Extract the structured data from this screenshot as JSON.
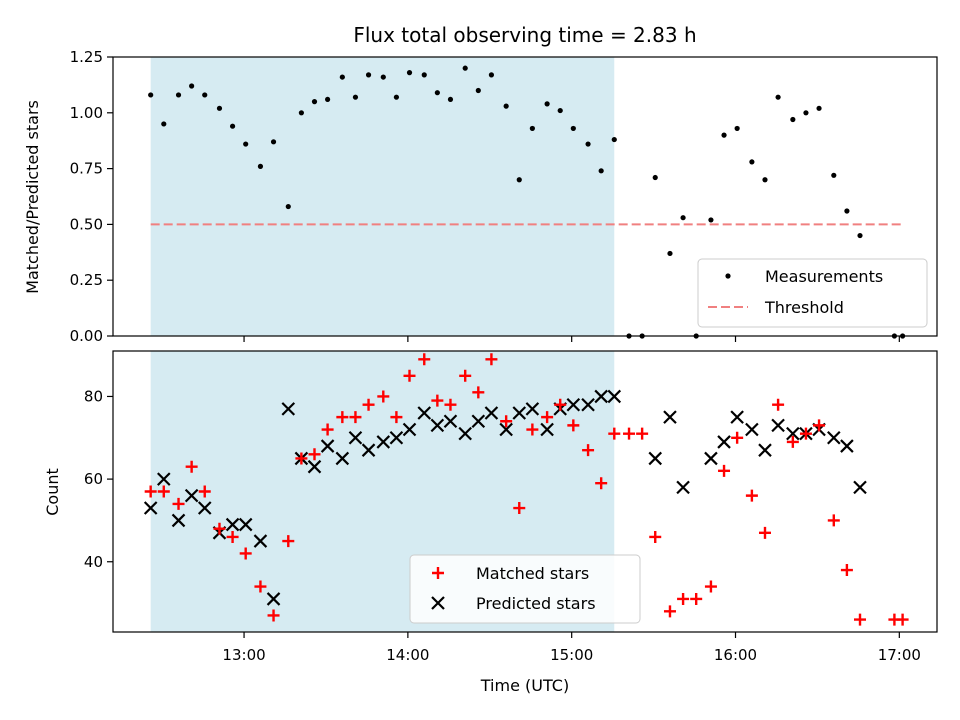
{
  "chart_data": {
    "title": "Flux total observing time = 2.83 h",
    "xlabel": "Time (UTC)",
    "x_ticks": [
      "13:00",
      "14:00",
      "15:00",
      "16:00",
      "17:00"
    ],
    "x_tick_hours": [
      13,
      14,
      15,
      16,
      17
    ],
    "xlim": [
      12.2,
      17.23
    ],
    "shaded_region": {
      "start": 12.43,
      "end": 15.26,
      "color": "#add8e6"
    },
    "panels": [
      {
        "type": "scatter",
        "ylabel": "Matched/Predicted stars",
        "ylim": [
          0,
          1.25
        ],
        "y_ticks": [
          0.0,
          0.25,
          0.5,
          0.75,
          1.0,
          1.25
        ],
        "y_tick_labels": [
          "0.00",
          "0.25",
          "0.50",
          "0.75",
          "1.00",
          "1.25"
        ],
        "threshold": {
          "value": 0.5,
          "x_start": 12.43,
          "x_end": 17.02,
          "color": "#f08080"
        },
        "legend": [
          "Measurements",
          "Threshold"
        ],
        "series": [
          {
            "name": "Measurements",
            "color": "#000000",
            "x": [
              12.43,
              12.51,
              12.6,
              12.68,
              12.76,
              12.85,
              12.93,
              13.01,
              13.1,
              13.18,
              13.27,
              13.35,
              13.43,
              13.51,
              13.6,
              13.68,
              13.76,
              13.85,
              13.93,
              14.01,
              14.1,
              14.18,
              14.26,
              14.35,
              14.43,
              14.51,
              14.6,
              14.68,
              14.76,
              14.85,
              14.93,
              15.01,
              15.1,
              15.18,
              15.26,
              15.35,
              15.43,
              15.51,
              15.6,
              15.68,
              15.76,
              15.85,
              15.93,
              16.01,
              16.1,
              16.18,
              16.26,
              16.35,
              16.43,
              16.51,
              16.6,
              16.68,
              16.76,
              16.97,
              17.02
            ],
            "y": [
              1.08,
              0.95,
              1.08,
              1.12,
              1.08,
              1.02,
              0.94,
              0.86,
              0.76,
              0.87,
              0.58,
              1.0,
              1.05,
              1.06,
              1.16,
              1.07,
              1.17,
              1.16,
              1.07,
              1.18,
              1.17,
              1.09,
              1.06,
              1.2,
              1.1,
              1.17,
              1.03,
              0.7,
              0.93,
              1.04,
              1.01,
              0.93,
              0.86,
              0.74,
              0.88,
              0.0,
              0.0,
              0.71,
              0.37,
              0.53,
              0.0,
              0.52,
              0.9,
              0.93,
              0.78,
              0.7,
              1.07,
              0.97,
              1.0,
              1.02,
              0.72,
              0.56,
              0.45,
              0.0,
              0.0
            ]
          }
        ]
      },
      {
        "type": "scatter",
        "ylabel": "Count",
        "ylim": [
          23,
          91
        ],
        "y_ticks": [
          40,
          60,
          80
        ],
        "y_tick_labels": [
          "40",
          "60",
          "80"
        ],
        "legend": [
          "Matched stars",
          "Predicted stars"
        ],
        "series": [
          {
            "name": "Matched stars",
            "color": "#ff0000",
            "marker": "plus",
            "x": [
              12.43,
              12.51,
              12.6,
              12.68,
              12.76,
              12.85,
              12.93,
              13.01,
              13.1,
              13.18,
              13.27,
              13.35,
              13.43,
              13.51,
              13.6,
              13.68,
              13.76,
              13.85,
              13.93,
              14.01,
              14.1,
              14.18,
              14.26,
              14.35,
              14.43,
              14.51,
              14.6,
              14.68,
              14.76,
              14.85,
              14.93,
              15.01,
              15.1,
              15.18,
              15.26,
              15.35,
              15.43,
              15.51,
              15.6,
              15.68,
              15.76,
              15.85,
              15.93,
              16.01,
              16.1,
              16.18,
              16.26,
              16.35,
              16.43,
              16.51,
              16.6,
              16.68,
              16.76,
              16.97,
              17.02
            ],
            "y": [
              57,
              57,
              54,
              63,
              57,
              48,
              46,
              42,
              34,
              27,
              45,
              65,
              66,
              72,
              75,
              75,
              78,
              80,
              75,
              85,
              89,
              79,
              78,
              85,
              81,
              89,
              74,
              53,
              72,
              75,
              78,
              73,
              67,
              59,
              71,
              71,
              71,
              46,
              28,
              31,
              31,
              34,
              62,
              70,
              56,
              47,
              78,
              69,
              71,
              73,
              50,
              38,
              26,
              26,
              26
            ]
          },
          {
            "name": "Predicted stars",
            "color": "#000000",
            "marker": "x",
            "x": [
              12.43,
              12.51,
              12.6,
              12.68,
              12.76,
              12.85,
              12.93,
              13.01,
              13.1,
              13.18,
              13.27,
              13.35,
              13.43,
              13.51,
              13.6,
              13.68,
              13.76,
              13.85,
              13.93,
              14.01,
              14.1,
              14.18,
              14.26,
              14.35,
              14.43,
              14.51,
              14.6,
              14.68,
              14.76,
              14.85,
              14.93,
              15.01,
              15.1,
              15.18,
              15.26,
              15.51,
              15.6,
              15.68,
              15.85,
              15.93,
              16.01,
              16.1,
              16.18,
              16.26,
              16.35,
              16.43,
              16.51,
              16.6,
              16.68,
              16.76
            ],
            "y": [
              53,
              60,
              50,
              56,
              53,
              47,
              49,
              49,
              45,
              31,
              77,
              65,
              63,
              68,
              65,
              70,
              67,
              69,
              70,
              72,
              76,
              73,
              74,
              71,
              74,
              76,
              72,
              76,
              77,
              72,
              77,
              78,
              78,
              80,
              80,
              65,
              75,
              58,
              65,
              69,
              75,
              72,
              67,
              73,
              71,
              71,
              72,
              70,
              68,
              58
            ]
          }
        ]
      }
    ]
  }
}
